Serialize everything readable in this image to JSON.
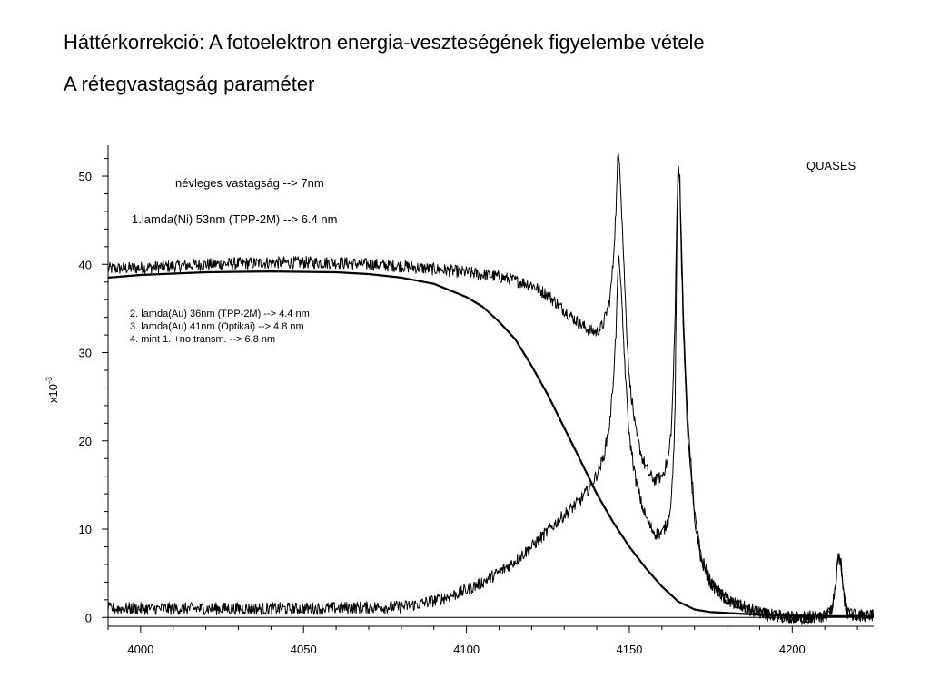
{
  "slide": {
    "title": "Háttérkorrekció: A fotoelektron energia-veszteségének figyelembe vétele",
    "subtitle": "A rétegvastagság paraméter"
  },
  "chart_data": {
    "type": "line",
    "title": "",
    "xlabel": "",
    "ylabel": "x10",
    "ylabel_exponent": "-3",
    "xlim": [
      3990,
      4225
    ],
    "ylim": [
      -1,
      53.5
    ],
    "x_ticks": [
      4000,
      4050,
      4100,
      4150,
      4200
    ],
    "y_ticks": [
      0,
      10,
      20,
      30,
      40,
      50
    ],
    "grid": false,
    "legend": "none",
    "annotations": {
      "software": "QUASES",
      "nominal": "névleges vastagság --> 7nm",
      "model1": "1.lamda(Ni) 53nm (TPP-2M) --> 6.4 nm",
      "model2": "2. lamda(Au) 36nm (TPP-2M) --> 4.4 nm",
      "model3": "3. lamda(Au) 41nm (Optikai) --> 4.8 nm",
      "model4": "4. mint 1. +no transm. --> 6.8 nm"
    },
    "series": [
      {
        "x": [
          3990,
          4000,
          4020,
          4040,
          4060,
          4080,
          4100,
          4110,
          4120,
          4125,
          4130,
          4135,
          4138,
          4140,
          4142,
          4144,
          4145,
          4146,
          4146.5,
          4147,
          4148,
          4149,
          4150,
          4152,
          4154,
          4156,
          4158,
          4160,
          4162,
          4163,
          4164,
          4164.5,
          4165,
          4165.5,
          4166,
          4167,
          4168,
          4170,
          4172,
          4175,
          4178,
          4180,
          4185,
          4190,
          4195,
          4200,
          4205,
          4210,
          4212,
          4213,
          4214,
          4214.5,
          4215,
          4216,
          4217,
          4220,
          4225
        ],
        "y": [
          39.5,
          39.6,
          40.0,
          40.2,
          40.2,
          39.8,
          39.1,
          38.6,
          37.7,
          36.5,
          34.8,
          33.2,
          32.5,
          32.3,
          33.2,
          36.0,
          40.0,
          47.0,
          52.5,
          52.0,
          43.0,
          34.0,
          27.0,
          21.0,
          18.0,
          16.2,
          15.5,
          16.0,
          18.0,
          22.0,
          33.0,
          45.0,
          51.3,
          50.0,
          42.0,
          30.0,
          22.0,
          12.0,
          7.0,
          4.0,
          2.7,
          2.0,
          1.0,
          0.5,
          0.2,
          0.1,
          0.1,
          0.2,
          0.8,
          3.0,
          6.5,
          6.8,
          6.0,
          2.0,
          0.5,
          0.2,
          0.2
        ],
        "noise": 0.7
      },
      {
        "x": [
          3990,
          4050,
          4080,
          4085,
          4090,
          4095,
          4100,
          4105,
          4110,
          4115,
          4120,
          4125,
          4130,
          4135,
          4138,
          4140,
          4142,
          4144,
          4145,
          4146,
          4146.5,
          4147,
          4148,
          4149,
          4150,
          4152,
          4154,
          4156,
          4158,
          4160,
          4162,
          4163,
          4164,
          4164.5,
          4165,
          4165.5,
          4166,
          4167,
          4168,
          4170,
          4172,
          4175,
          4178,
          4180,
          4185,
          4190,
          4195,
          4200,
          4205,
          4210,
          4212,
          4213,
          4214,
          4214.5,
          4215,
          4216,
          4217,
          4220,
          4225
        ],
        "y": [
          1.0,
          1.0,
          1.2,
          1.5,
          1.9,
          2.4,
          3.1,
          4.0,
          5.1,
          6.4,
          8.0,
          9.8,
          11.6,
          13.3,
          14.8,
          16.2,
          18.0,
          22.0,
          26.5,
          33.0,
          40.0,
          40.5,
          33.0,
          26.0,
          20.5,
          15.5,
          12.5,
          10.5,
          9.5,
          9.5,
          11.0,
          14.0,
          22.0,
          40.0,
          51.0,
          49.0,
          40.0,
          28.0,
          20.0,
          11.0,
          6.5,
          3.8,
          2.7,
          2.1,
          1.2,
          0.5,
          0.1,
          -0.2,
          -0.2,
          0.1,
          0.8,
          3.0,
          6.5,
          6.8,
          6.0,
          2.0,
          0.5,
          0.2,
          0.2
        ],
        "noise": 0.7
      },
      {
        "x": [
          3990,
          4000,
          4020,
          4040,
          4060,
          4070,
          4080,
          4090,
          4100,
          4105,
          4110,
          4115,
          4120,
          4125,
          4130,
          4135,
          4140,
          4145,
          4150,
          4155,
          4160,
          4165,
          4170,
          4175,
          4180,
          4185,
          4190,
          4200,
          4225
        ],
        "y": [
          38.5,
          38.8,
          39.1,
          39.2,
          39.1,
          38.9,
          38.5,
          37.8,
          36.3,
          35.2,
          33.5,
          31.5,
          28.5,
          25.2,
          21.5,
          17.8,
          14.0,
          10.8,
          8.0,
          5.6,
          3.5,
          1.8,
          0.9,
          0.6,
          0.5,
          0.4,
          0.3,
          0.2,
          0.1
        ],
        "noise": 0
      },
      {
        "x": [
          3990,
          4225
        ],
        "y": [
          0,
          0
        ],
        "noise": 0
      }
    ]
  }
}
